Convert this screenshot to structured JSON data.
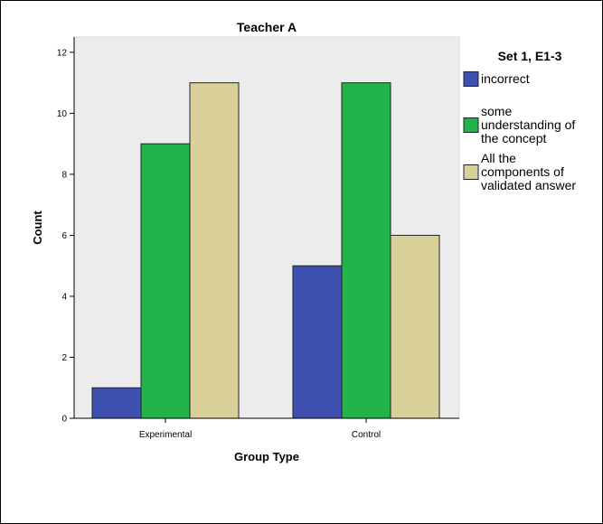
{
  "chart_data": {
    "type": "bar",
    "title": "Teacher A",
    "xlabel": "Group Type",
    "ylabel": "Count",
    "categories": [
      "Experimental",
      "Control"
    ],
    "ylim": [
      0,
      12.5
    ],
    "yticks": [
      0,
      2,
      4,
      6,
      8,
      10,
      12
    ],
    "grid": false,
    "legend": {
      "title": "Set 1, E1-3",
      "position": "right"
    },
    "series": [
      {
        "name": "incorrect",
        "label_lines": [
          "incorrect"
        ],
        "color": "#3e51b0",
        "values": [
          1,
          5
        ]
      },
      {
        "name": "some understanding of the concept",
        "label_lines": [
          "some",
          "understanding of",
          "the concept"
        ],
        "color": "#22b34a",
        "values": [
          9,
          11
        ]
      },
      {
        "name": "All the components of validated answer",
        "label_lines": [
          "All the",
          "components of",
          "validated answer"
        ],
        "color": "#d9d09a",
        "values": [
          11,
          6
        ]
      }
    ],
    "colors": {
      "plot_background": "#ececec",
      "bar_stroke": "#222222",
      "axis": "#000000"
    }
  }
}
